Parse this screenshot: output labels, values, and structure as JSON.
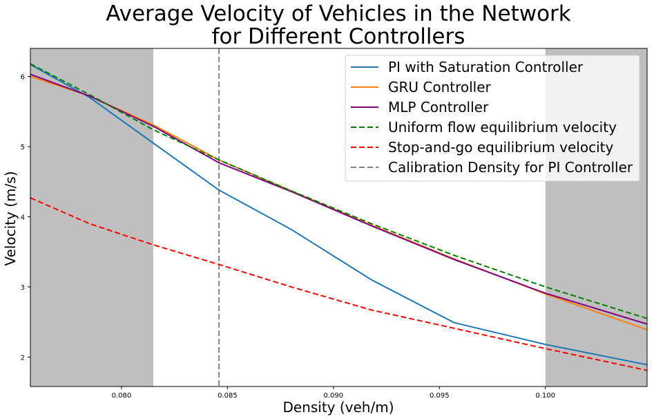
{
  "chart_data": {
    "type": "line",
    "title": [
      "Average Velocity of Vehicles in the Network",
      "for Different Controllers"
    ],
    "xlabel": "Density (veh/m)",
    "ylabel": "Velocity (m/s)",
    "xlim": [
      0.0757,
      0.1048
    ],
    "ylim": [
      1.58,
      6.4
    ],
    "xticks": [
      0.08,
      0.085,
      0.09,
      0.095,
      0.1
    ],
    "xtick_labels": [
      "0.080",
      "0.085",
      "0.090",
      "0.095",
      "0.100"
    ],
    "yticks": [
      2,
      3,
      4,
      5,
      6
    ],
    "ytick_labels": [
      "2",
      "3",
      "4",
      "5",
      "6"
    ],
    "grid": false,
    "legend_position": "top-right",
    "shaded_regions": [
      {
        "x": [
          0.0757,
          0.0815
        ],
        "color": "#bfbfbf"
      },
      {
        "x": [
          0.1,
          0.1048
        ],
        "color": "#bfbfbf"
      }
    ],
    "vlines": [
      {
        "name": "Calibration Density for PI Controller",
        "x": 0.0846,
        "color": "#808080",
        "dash": true
      }
    ],
    "series": [
      {
        "name": "PI with Saturation Controller",
        "color": "#1f77b4",
        "dash": false,
        "x": [
          0.0757,
          0.0785,
          0.0815,
          0.0846,
          0.088,
          0.0918,
          0.0957,
          0.1,
          0.1048
        ],
        "y": [
          6.17,
          5.7,
          5.05,
          4.38,
          3.82,
          3.1,
          2.49,
          2.18,
          1.89
        ]
      },
      {
        "name": "GRU Controller",
        "color": "#ff7f0e",
        "dash": false,
        "x": [
          0.0757,
          0.0785,
          0.0815,
          0.0846,
          0.088,
          0.0918,
          0.0957,
          0.1,
          0.1048
        ],
        "y": [
          6.0,
          5.72,
          5.31,
          4.81,
          4.37,
          3.88,
          3.4,
          2.9,
          2.39
        ]
      },
      {
        "name": "MLP Controller",
        "color": "#800080",
        "dash": false,
        "x": [
          0.0757,
          0.0785,
          0.0815,
          0.0846,
          0.088,
          0.0918,
          0.0957,
          0.1,
          0.1048
        ],
        "y": [
          6.03,
          5.72,
          5.29,
          4.77,
          4.36,
          3.87,
          3.39,
          2.91,
          2.47
        ]
      },
      {
        "name": "Uniform flow equilibrium velocity",
        "color": "#008000",
        "dash": true,
        "x": [
          0.0757,
          0.0785,
          0.0815,
          0.0846,
          0.088,
          0.0918,
          0.0957,
          0.1,
          0.1048
        ],
        "y": [
          6.18,
          5.74,
          5.24,
          4.81,
          4.37,
          3.9,
          3.45,
          3.0,
          2.55
        ]
      },
      {
        "name": "Stop-and-go equilibrium velocity",
        "color": "#ff0000",
        "dash": true,
        "x": [
          0.0757,
          0.0785,
          0.0815,
          0.0846,
          0.088,
          0.0918,
          0.0957,
          0.1,
          0.1048
        ],
        "y": [
          4.27,
          3.9,
          3.6,
          3.32,
          3.0,
          2.67,
          2.41,
          2.12,
          1.81
        ]
      }
    ]
  }
}
